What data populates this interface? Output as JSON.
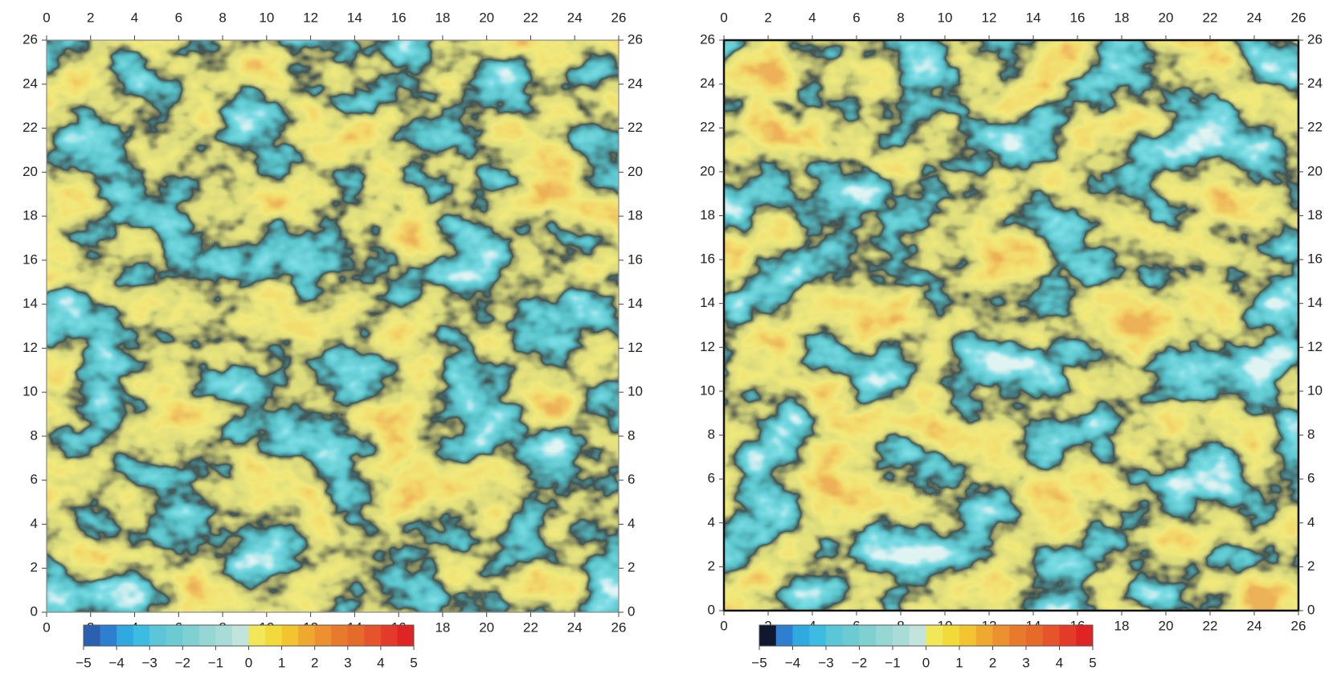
{
  "chart_data": [
    {
      "type": "heatmap",
      "xlim": [
        0,
        26
      ],
      "ylim": [
        0,
        26
      ],
      "xticks": [
        0,
        2,
        4,
        6,
        8,
        10,
        12,
        14,
        16,
        18,
        20,
        22,
        24,
        26
      ],
      "yticks": [
        0,
        2,
        4,
        6,
        8,
        10,
        12,
        14,
        16,
        18,
        20,
        22,
        24,
        26
      ],
      "colorbar": {
        "lim": [
          -5,
          5
        ],
        "ticks": [
          {
            "value": -5,
            "label": "−5"
          },
          {
            "value": -4,
            "label": "−4"
          },
          {
            "value": -3,
            "label": "−3"
          },
          {
            "value": -2,
            "label": "−2"
          },
          {
            "value": -1,
            "label": "−1"
          },
          0,
          1,
          2,
          3,
          4,
          5
        ],
        "colors": [
          "#2b5fb0",
          "#2f7fd0",
          "#30a8e0",
          "#3cbce0",
          "#5ac6d8",
          "#6ccbd2",
          "#7fd0d0",
          "#96d6d4",
          "#a8dcd8",
          "#c2e4dc",
          "#f0e858",
          "#f2da3a",
          "#f2c430",
          "#efa830",
          "#ec9030",
          "#e87a2e",
          "#e66a2a",
          "#e5542a",
          "#e43a2a",
          "#e02424"
        ]
      }
    },
    {
      "type": "heatmap",
      "xlim": [
        0,
        26
      ],
      "ylim": [
        0,
        26
      ],
      "xticks": [
        0,
        2,
        4,
        6,
        8,
        10,
        12,
        14,
        16,
        18,
        20,
        22,
        24,
        26
      ],
      "yticks": [
        0,
        2,
        4,
        6,
        8,
        10,
        12,
        14,
        16,
        18,
        20,
        22,
        24,
        26
      ],
      "colorbar": {
        "lim": [
          -5,
          5
        ],
        "ticks": [
          {
            "value": -5,
            "label": "−5"
          },
          {
            "value": -4,
            "label": "−4"
          },
          {
            "value": -3,
            "label": "−3"
          },
          {
            "value": -2,
            "label": "−2"
          },
          {
            "value": -1,
            "label": "−1"
          },
          0,
          1,
          2,
          3,
          4,
          5
        ],
        "colors": [
          "#101830",
          "#2f7fd0",
          "#30a8e0",
          "#3cbce0",
          "#5ac6d8",
          "#6ccbd2",
          "#7fd0d0",
          "#96d6d4",
          "#a8dcd8",
          "#c2e4dc",
          "#f0e858",
          "#f2da3a",
          "#f2c430",
          "#efa830",
          "#ec9030",
          "#e87a2e",
          "#e66a2a",
          "#e5542a",
          "#e43a2a",
          "#e02424"
        ]
      }
    }
  ]
}
